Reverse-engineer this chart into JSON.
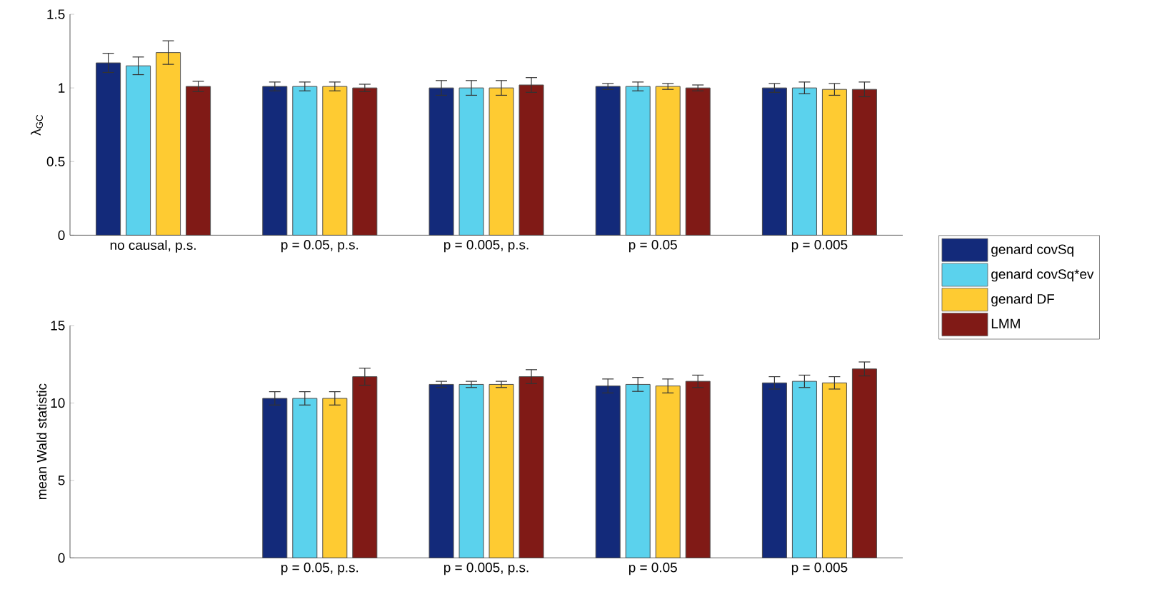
{
  "chart_data": [
    {
      "type": "bar",
      "ylabel": "λ$_{GC}$",
      "categories": [
        "no causal, p.s.",
        "p = 0.05, p.s.",
        "p = 0.005, p.s.",
        "p = 0.05",
        "p = 0.005"
      ],
      "ylim": [
        0,
        1.5
      ],
      "yticks": [
        0,
        0.5,
        1,
        1.5
      ],
      "legend": "right",
      "series": [
        {
          "name": "genard covSq",
          "color": "#132a7a",
          "values": [
            1.17,
            1.01,
            1.0,
            1.01,
            1.0
          ],
          "errors": [
            0.065,
            0.03,
            0.05,
            0.02,
            0.03
          ]
        },
        {
          "name": "genard covSq*ev",
          "color": "#5bd2ed",
          "values": [
            1.15,
            1.01,
            1.0,
            1.01,
            1.0
          ],
          "errors": [
            0.06,
            0.03,
            0.05,
            0.03,
            0.04
          ]
        },
        {
          "name": "genard DF",
          "color": "#fecb32",
          "values": [
            1.24,
            1.01,
            1.0,
            1.01,
            0.99
          ],
          "errors": [
            0.08,
            0.03,
            0.05,
            0.02,
            0.04
          ]
        },
        {
          "name": "LMM",
          "color": "#801a16",
          "values": [
            1.01,
            1.0,
            1.02,
            1.0,
            0.99
          ],
          "errors": [
            0.035,
            0.025,
            0.05,
            0.02,
            0.05
          ]
        }
      ]
    },
    {
      "type": "bar",
      "ylabel": "mean Wald statistic",
      "categories": [
        null,
        "p = 0.05, p.s.",
        "p = 0.005, p.s.",
        "p = 0.05",
        "p = 0.005"
      ],
      "ylim": [
        0,
        15
      ],
      "yticks": [
        0,
        5,
        10,
        15
      ],
      "series": [
        {
          "color": "#132a7a",
          "values": [
            null,
            10.3,
            11.2,
            11.1,
            11.3
          ],
          "errors": [
            null,
            0.43,
            0.2,
            0.45,
            0.4
          ]
        },
        {
          "color": "#5bd2ed",
          "values": [
            null,
            10.3,
            11.2,
            11.2,
            11.4
          ],
          "errors": [
            null,
            0.43,
            0.2,
            0.45,
            0.4
          ]
        },
        {
          "color": "#fecb32",
          "values": [
            null,
            10.3,
            11.2,
            11.1,
            11.3
          ],
          "errors": [
            null,
            0.43,
            0.2,
            0.45,
            0.4
          ]
        },
        {
          "color": "#801a16",
          "values": [
            null,
            11.7,
            11.7,
            11.4,
            12.2
          ],
          "errors": [
            null,
            0.55,
            0.45,
            0.4,
            0.45
          ]
        }
      ]
    }
  ]
}
